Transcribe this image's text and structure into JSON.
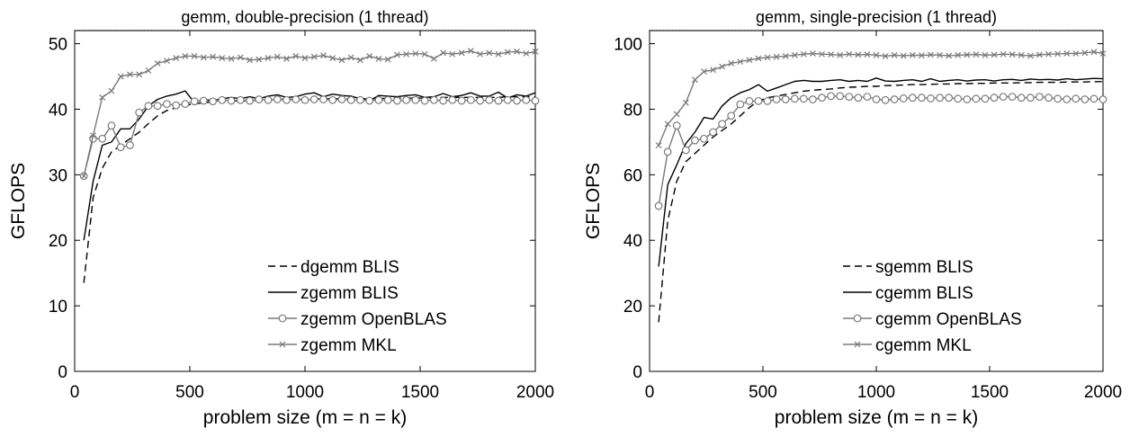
{
  "chart_data": [
    {
      "type": "line",
      "title": "gemm, double-precision (1 thread)",
      "xlabel": "problem size (m = n = k)",
      "ylabel": "GFLOPS",
      "xlim": [
        0,
        2000
      ],
      "ylim": [
        0,
        52
      ],
      "xticks": [
        0,
        500,
        1000,
        1500,
        2000
      ],
      "yticks": [
        0,
        10,
        20,
        30,
        40,
        50
      ],
      "grid": false,
      "legend_position": "bottom-right",
      "series": [
        {
          "name": "dgemm BLIS",
          "style": "dashed",
          "marker": "none",
          "color": "#000000",
          "x": [
            40,
            80,
            120,
            160,
            200,
            240,
            280,
            320,
            360,
            400,
            440,
            480,
            520,
            560,
            600,
            640,
            680,
            720,
            760,
            800,
            840,
            880,
            920,
            960,
            1000,
            1040,
            1080,
            1120,
            1160,
            1200,
            1240,
            1280,
            1320,
            1360,
            1400,
            1440,
            1480,
            1520,
            1560,
            1600,
            1640,
            1680,
            1720,
            1760,
            1800,
            1840,
            1880,
            1920,
            1960,
            2000
          ],
          "y": [
            13.5,
            26.5,
            31.0,
            33.5,
            34.5,
            35.5,
            36.5,
            37.8,
            39.0,
            39.8,
            40.2,
            40.6,
            40.8,
            41.0,
            41.1,
            41.2,
            41.2,
            41.3,
            41.3,
            41.4,
            41.4,
            41.5,
            41.5,
            41.5,
            41.5,
            41.6,
            41.6,
            41.6,
            41.6,
            41.7,
            41.6,
            41.6,
            41.6,
            41.7,
            41.7,
            41.7,
            41.7,
            41.7,
            41.8,
            41.8,
            41.8,
            41.8,
            41.8,
            41.8,
            41.8,
            41.8,
            41.9,
            41.9,
            41.9,
            41.9
          ]
        },
        {
          "name": "zgemm BLIS",
          "style": "solid",
          "marker": "none",
          "color": "#000000",
          "x": [
            40,
            80,
            120,
            160,
            200,
            240,
            280,
            320,
            360,
            400,
            440,
            480,
            520,
            560,
            600,
            640,
            680,
            720,
            760,
            800,
            840,
            880,
            920,
            960,
            1000,
            1040,
            1080,
            1120,
            1160,
            1200,
            1240,
            1280,
            1320,
            1360,
            1400,
            1440,
            1480,
            1520,
            1560,
            1600,
            1640,
            1680,
            1720,
            1760,
            1800,
            1840,
            1880,
            1920,
            1960,
            2000
          ],
          "y": [
            20.0,
            29.0,
            34.5,
            35.0,
            37.0,
            37.0,
            38.5,
            40.5,
            41.5,
            42.0,
            42.3,
            42.8,
            41.0,
            41.5,
            41.3,
            41.6,
            41.8,
            41.6,
            41.9,
            41.6,
            42.0,
            42.2,
            41.8,
            41.9,
            42.3,
            42.5,
            41.9,
            42.3,
            42.1,
            42.0,
            41.6,
            41.3,
            42.1,
            42.0,
            41.9,
            42.1,
            42.2,
            41.8,
            41.9,
            42.4,
            41.9,
            42.1,
            42.5,
            42.0,
            42.0,
            42.6,
            41.7,
            42.2,
            42.0,
            42.5
          ]
        },
        {
          "name": "zgemm OpenBLAS",
          "style": "solid",
          "marker": "circle",
          "color": "#7a7a7a",
          "x": [
            40,
            80,
            120,
            160,
            200,
            240,
            280,
            320,
            360,
            400,
            440,
            480,
            520,
            560,
            600,
            640,
            680,
            720,
            760,
            800,
            840,
            880,
            920,
            960,
            1000,
            1040,
            1080,
            1120,
            1160,
            1200,
            1240,
            1280,
            1320,
            1360,
            1400,
            1440,
            1480,
            1520,
            1560,
            1600,
            1640,
            1680,
            1720,
            1760,
            1800,
            1840,
            1880,
            1920,
            1960,
            2000
          ],
          "y": [
            29.8,
            35.5,
            35.5,
            37.5,
            34.2,
            34.5,
            39.5,
            40.5,
            40.5,
            40.8,
            40.6,
            40.8,
            41.2,
            41.3,
            41.2,
            41.4,
            41.3,
            41.4,
            41.3,
            41.5,
            41.4,
            41.5,
            41.4,
            41.5,
            41.4,
            41.5,
            41.5,
            41.4,
            41.5,
            41.4,
            41.4,
            41.3,
            41.4,
            41.4,
            41.3,
            41.4,
            41.4,
            41.3,
            41.4,
            41.3,
            41.4,
            41.3,
            41.4,
            41.3,
            41.4,
            41.3,
            41.4,
            41.3,
            41.4,
            41.3
          ]
        },
        {
          "name": "zgemm MKL",
          "style": "solid",
          "marker": "x",
          "color": "#7a7a7a",
          "x": [
            40,
            80,
            120,
            160,
            200,
            240,
            280,
            320,
            360,
            400,
            440,
            480,
            520,
            560,
            600,
            640,
            680,
            720,
            760,
            800,
            840,
            880,
            920,
            960,
            1000,
            1040,
            1080,
            1120,
            1160,
            1200,
            1240,
            1280,
            1320,
            1360,
            1400,
            1440,
            1480,
            1520,
            1560,
            1600,
            1640,
            1680,
            1720,
            1760,
            1800,
            1840,
            1880,
            1920,
            1960,
            2000
          ],
          "y": [
            29.8,
            36.0,
            41.8,
            42.8,
            45.0,
            45.3,
            45.3,
            45.9,
            47.0,
            47.4,
            47.8,
            48.1,
            48.1,
            47.9,
            48.0,
            47.8,
            47.7,
            47.9,
            47.5,
            47.6,
            47.8,
            48.0,
            47.7,
            48.1,
            47.8,
            48.0,
            48.2,
            47.8,
            47.5,
            47.9,
            47.5,
            48.1,
            47.7,
            47.6,
            48.3,
            48.4,
            48.5,
            48.4,
            47.7,
            48.6,
            48.4,
            48.6,
            48.9,
            48.4,
            48.6,
            48.4,
            48.7,
            48.8,
            48.5,
            48.8
          ]
        }
      ]
    },
    {
      "type": "line",
      "title": "gemm, single-precision (1 thread)",
      "xlabel": "problem size (m = n = k)",
      "ylabel": "GFLOPS",
      "xlim": [
        0,
        2000
      ],
      "ylim": [
        0,
        104
      ],
      "xticks": [
        0,
        500,
        1000,
        1500,
        2000
      ],
      "yticks": [
        0,
        20,
        40,
        60,
        80,
        100
      ],
      "grid": false,
      "legend_position": "bottom-right",
      "series": [
        {
          "name": "sgemm BLIS",
          "style": "dashed",
          "marker": "none",
          "color": "#000000",
          "x": [
            40,
            80,
            120,
            160,
            200,
            240,
            280,
            320,
            360,
            400,
            440,
            480,
            520,
            560,
            600,
            640,
            680,
            720,
            760,
            800,
            840,
            880,
            920,
            960,
            1000,
            1040,
            1080,
            1120,
            1160,
            1200,
            1240,
            1280,
            1320,
            1360,
            1400,
            1440,
            1480,
            1520,
            1560,
            1600,
            1640,
            1680,
            1720,
            1760,
            1800,
            1840,
            1880,
            1920,
            1960,
            2000
          ],
          "y": [
            15.0,
            46.0,
            58.0,
            64.0,
            66.5,
            69.0,
            71.5,
            73.5,
            75.5,
            78.0,
            80.5,
            82.5,
            83.5,
            84.0,
            84.5,
            85.0,
            85.5,
            85.8,
            86.0,
            86.2,
            86.5,
            86.7,
            86.8,
            87.0,
            87.0,
            87.2,
            87.3,
            87.4,
            87.5,
            87.5,
            87.6,
            87.7,
            87.7,
            87.8,
            87.8,
            87.9,
            87.9,
            88.0,
            88.0,
            88.0,
            88.1,
            88.1,
            88.2,
            88.2,
            88.2,
            88.3,
            88.3,
            88.3,
            88.4,
            88.4
          ]
        },
        {
          "name": "cgemm BLIS",
          "style": "solid",
          "marker": "none",
          "color": "#000000",
          "x": [
            40,
            80,
            120,
            160,
            200,
            240,
            280,
            320,
            360,
            400,
            440,
            480,
            520,
            560,
            600,
            640,
            680,
            720,
            760,
            800,
            840,
            880,
            920,
            960,
            1000,
            1040,
            1080,
            1120,
            1160,
            1200,
            1240,
            1280,
            1320,
            1360,
            1400,
            1440,
            1480,
            1520,
            1560,
            1600,
            1640,
            1680,
            1720,
            1760,
            1800,
            1840,
            1880,
            1920,
            1960,
            2000
          ],
          "y": [
            32.0,
            57.0,
            63.0,
            69.5,
            73.0,
            77.5,
            77.0,
            81.0,
            83.5,
            85.0,
            86.0,
            87.5,
            85.5,
            86.5,
            87.5,
            88.5,
            88.8,
            88.5,
            88.5,
            88.8,
            89.0,
            88.5,
            88.8,
            88.5,
            89.5,
            88.6,
            88.5,
            88.8,
            89.0,
            88.5,
            89.3,
            88.5,
            88.8,
            89.0,
            88.6,
            88.9,
            89.0,
            88.6,
            89.0,
            89.1,
            88.8,
            89.2,
            89.0,
            89.1,
            88.9,
            89.3,
            89.0,
            89.2,
            89.4,
            89.3
          ]
        },
        {
          "name": "cgemm OpenBLAS",
          "style": "solid",
          "marker": "circle",
          "color": "#7a7a7a",
          "x": [
            40,
            80,
            120,
            160,
            200,
            240,
            280,
            320,
            360,
            400,
            440,
            480,
            520,
            560,
            600,
            640,
            680,
            720,
            760,
            800,
            840,
            880,
            920,
            960,
            1000,
            1040,
            1080,
            1120,
            1160,
            1200,
            1240,
            1280,
            1320,
            1360,
            1400,
            1440,
            1480,
            1520,
            1560,
            1600,
            1640,
            1680,
            1720,
            1760,
            1800,
            1840,
            1880,
            1920,
            1960,
            2000
          ],
          "y": [
            50.5,
            67.0,
            75.0,
            67.5,
            70.5,
            71.0,
            73.0,
            75.5,
            78.0,
            81.5,
            82.5,
            82.5,
            82.5,
            83.0,
            83.0,
            83.2,
            83.2,
            83.0,
            83.5,
            84.0,
            84.0,
            83.8,
            83.5,
            83.8,
            83.0,
            82.8,
            83.0,
            83.3,
            83.5,
            83.5,
            83.3,
            83.5,
            83.5,
            83.2,
            83.0,
            83.2,
            83.2,
            83.5,
            83.8,
            83.8,
            83.5,
            83.5,
            83.8,
            83.5,
            83.2,
            83.0,
            83.2,
            83.0,
            83.2,
            83.0
          ]
        },
        {
          "name": "cgemm MKL",
          "style": "solid",
          "marker": "x",
          "color": "#7a7a7a",
          "x": [
            40,
            80,
            120,
            160,
            200,
            240,
            280,
            320,
            360,
            400,
            440,
            480,
            520,
            560,
            600,
            640,
            680,
            720,
            760,
            800,
            840,
            880,
            920,
            960,
            1000,
            1040,
            1080,
            1120,
            1160,
            1200,
            1240,
            1280,
            1320,
            1360,
            1400,
            1440,
            1480,
            1520,
            1560,
            1600,
            1640,
            1680,
            1720,
            1760,
            1800,
            1840,
            1880,
            1920,
            1960,
            2000
          ],
          "y": [
            69.0,
            75.5,
            78.5,
            82.0,
            89.0,
            91.5,
            92.0,
            93.0,
            94.0,
            94.5,
            95.0,
            95.5,
            95.8,
            96.0,
            96.2,
            96.5,
            96.8,
            97.0,
            96.8,
            96.7,
            96.5,
            96.8,
            96.6,
            96.7,
            96.5,
            96.2,
            96.5,
            96.3,
            96.5,
            96.4,
            96.6,
            96.5,
            96.3,
            96.5,
            96.6,
            96.7,
            96.5,
            96.6,
            96.8,
            96.7,
            96.5,
            96.3,
            96.6,
            96.8,
            96.9,
            97.0,
            97.0,
            97.2,
            97.5,
            97.0
          ]
        }
      ]
    }
  ]
}
